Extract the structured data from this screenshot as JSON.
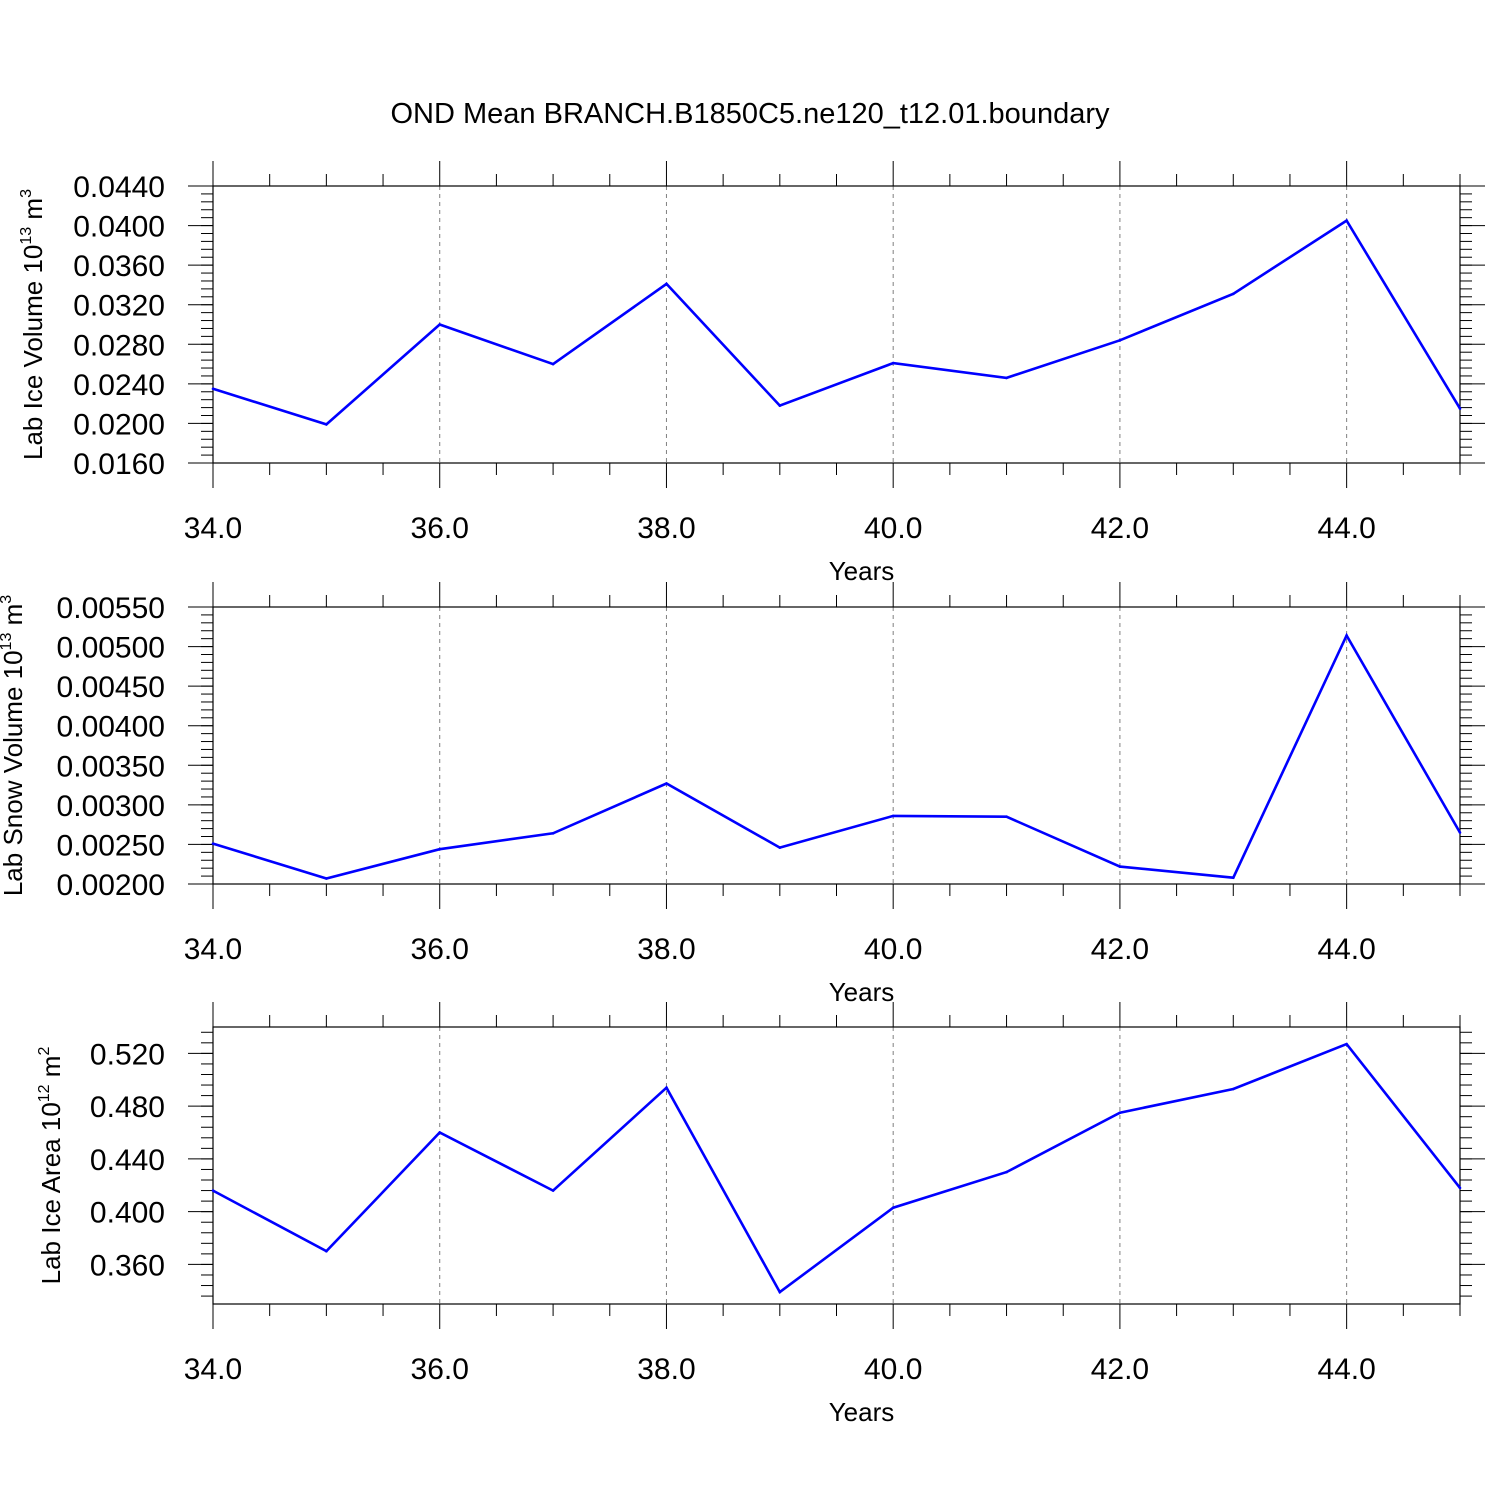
{
  "figure": {
    "title": "OND Mean BRANCH.B1850C5.ne120_t12.01.boundary",
    "line_color": "#0000ff",
    "grid_color": "#808080",
    "axis_color": "#000000"
  },
  "chart_data": [
    {
      "type": "line",
      "xlabel": "Years",
      "ylabel": {
        "main": "Lab Ice Volume 10",
        "sup": "13",
        "mid": " m",
        "unit_sup": "3"
      },
      "xlim": [
        34,
        45
      ],
      "ylim": [
        0.016,
        0.044
      ],
      "xticks": [
        34,
        36,
        38,
        40,
        42,
        44
      ],
      "xtick_labels": [
        "34.0",
        "36.0",
        "38.0",
        "40.0",
        "42.0",
        "44.0"
      ],
      "yticks": [
        0.016,
        0.02,
        0.024,
        0.028,
        0.032,
        0.036,
        0.04,
        0.044
      ],
      "ytick_labels": [
        "0.0160",
        "0.0200",
        "0.0240",
        "0.0280",
        "0.0320",
        "0.0360",
        "0.0400",
        "0.0440"
      ],
      "yminor_step": 0.0008,
      "grid": "vertical dashed at major x ticks",
      "series": [
        {
          "x": [
            34,
            35,
            36,
            37,
            38,
            39,
            40,
            41,
            42,
            43,
            44,
            45
          ],
          "y": [
            0.0235,
            0.0199,
            0.03,
            0.026,
            0.0341,
            0.0218,
            0.0261,
            0.0246,
            0.0284,
            0.0331,
            0.0405,
            0.0215
          ]
        }
      ]
    },
    {
      "type": "line",
      "xlabel": "Years",
      "ylabel": {
        "main": "Lab Snow Volume 10",
        "sup": "13",
        "mid": " m",
        "unit_sup": "3"
      },
      "xlim": [
        34,
        45
      ],
      "ylim": [
        0.002,
        0.0055
      ],
      "xticks": [
        34,
        36,
        38,
        40,
        42,
        44
      ],
      "xtick_labels": [
        "34.0",
        "36.0",
        "38.0",
        "40.0",
        "42.0",
        "44.0"
      ],
      "yticks": [
        0.002,
        0.0025,
        0.003,
        0.0035,
        0.004,
        0.0045,
        0.005,
        0.0055
      ],
      "ytick_labels": [
        "0.00200",
        "0.00250",
        "0.00300",
        "0.00350",
        "0.00400",
        "0.00450",
        "0.00500",
        "0.00550"
      ],
      "yminor_step": 0.0001,
      "grid": "vertical dashed at major x ticks",
      "series": [
        {
          "x": [
            34,
            35,
            36,
            37,
            38,
            39,
            40,
            41,
            42,
            43,
            44,
            45
          ],
          "y": [
            0.00251,
            0.00207,
            0.00244,
            0.00264,
            0.00327,
            0.00246,
            0.00286,
            0.00285,
            0.00222,
            0.00208,
            0.00514,
            0.00265
          ]
        }
      ]
    },
    {
      "type": "line",
      "xlabel": "Years",
      "ylabel": {
        "main": "Lab Ice Area 10",
        "sup": "12",
        "mid": " m",
        "unit_sup": "2"
      },
      "xlim": [
        34,
        45
      ],
      "ylim": [
        0.33,
        0.54
      ],
      "xticks": [
        34,
        36,
        38,
        40,
        42,
        44
      ],
      "xtick_labels": [
        "34.0",
        "36.0",
        "38.0",
        "40.0",
        "42.0",
        "44.0"
      ],
      "yticks": [
        0.36,
        0.4,
        0.44,
        0.48,
        0.52
      ],
      "ytick_labels": [
        "0.360",
        "0.400",
        "0.440",
        "0.480",
        "0.520"
      ],
      "yminor_step": 0.008,
      "grid": "vertical dashed at major x ticks",
      "series": [
        {
          "x": [
            34,
            35,
            36,
            37,
            38,
            39,
            40,
            41,
            42,
            43,
            44,
            45
          ],
          "y": [
            0.416,
            0.37,
            0.46,
            0.416,
            0.494,
            0.339,
            0.403,
            0.43,
            0.475,
            0.493,
            0.527,
            0.418
          ]
        }
      ]
    }
  ]
}
